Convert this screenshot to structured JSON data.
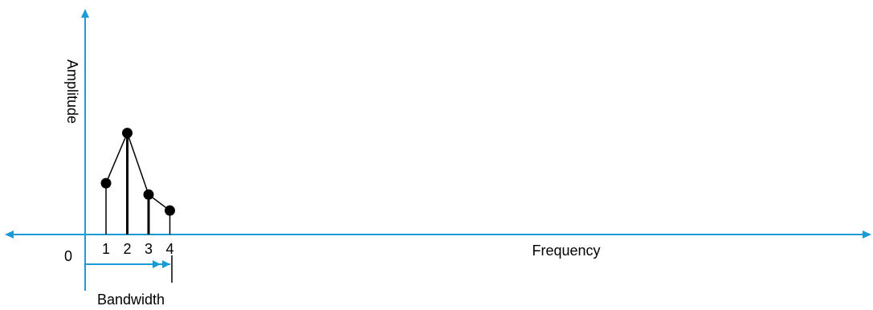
{
  "diagram": {
    "y_axis_label": "Amplitude",
    "x_axis_label": "Frequency",
    "origin_label": "0",
    "bandwidth_label": "Bandwidth",
    "axis_color": "#1a9ad6",
    "line_color": "#000000"
  },
  "chart_data": {
    "type": "stem",
    "x": [
      1,
      2,
      3,
      4
    ],
    "tick_labels": [
      "1",
      "2",
      "3",
      "4"
    ],
    "amplitudes": [
      0.45,
      0.89,
      0.35,
      0.21
    ],
    "xlabel": "Frequency",
    "ylabel": "Amplitude"
  }
}
